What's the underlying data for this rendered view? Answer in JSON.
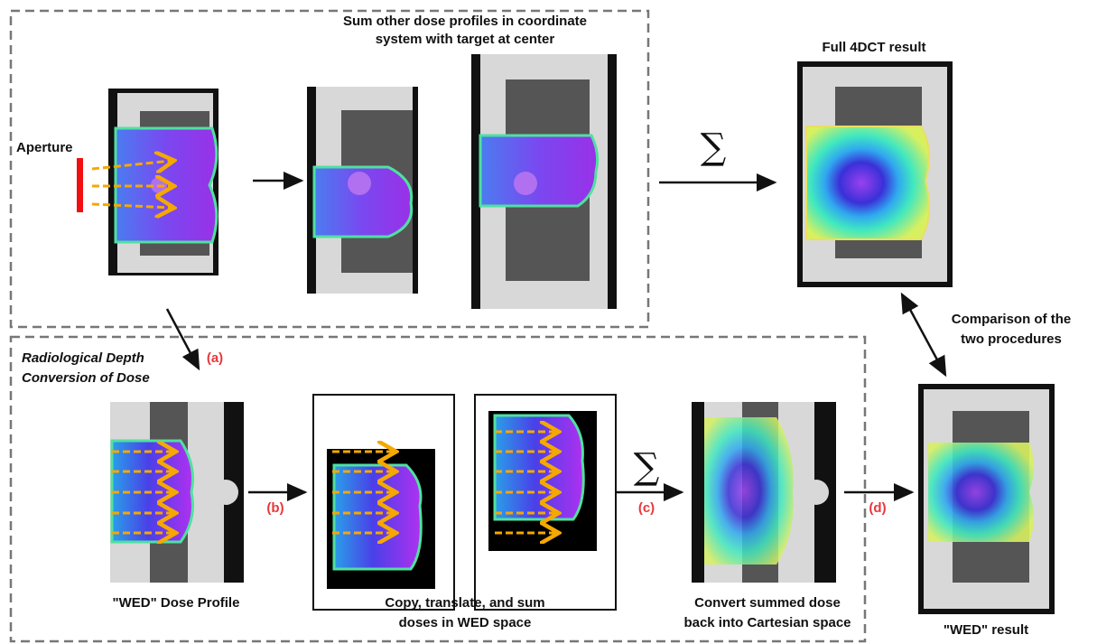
{
  "top_panel": {
    "caption": [
      "Sum other dose profiles in coordinate",
      "system with target at center"
    ],
    "aperture_label": "Aperture",
    "sum_symbol": "∑"
  },
  "full_result": {
    "title": "Full 4DCT result"
  },
  "comparison": {
    "label": [
      "Comparison of the",
      "two procedures"
    ]
  },
  "bottom_panel": {
    "title": [
      "Radiological Depth",
      "Conversion of Dose"
    ],
    "sum_symbol": "∑",
    "steps": [
      {
        "label": "(a)"
      },
      {
        "label": "(b)"
      },
      {
        "label": "(c)"
      },
      {
        "label": "(d)"
      }
    ],
    "captions": [
      [
        "\"WED\" Dose Profile"
      ],
      [
        "Copy, translate, and sum",
        "doses in WED space"
      ],
      [
        "Convert summed dose",
        "back into Cartesian space"
      ]
    ]
  },
  "wed_result": {
    "title": "\"WED\" result"
  }
}
